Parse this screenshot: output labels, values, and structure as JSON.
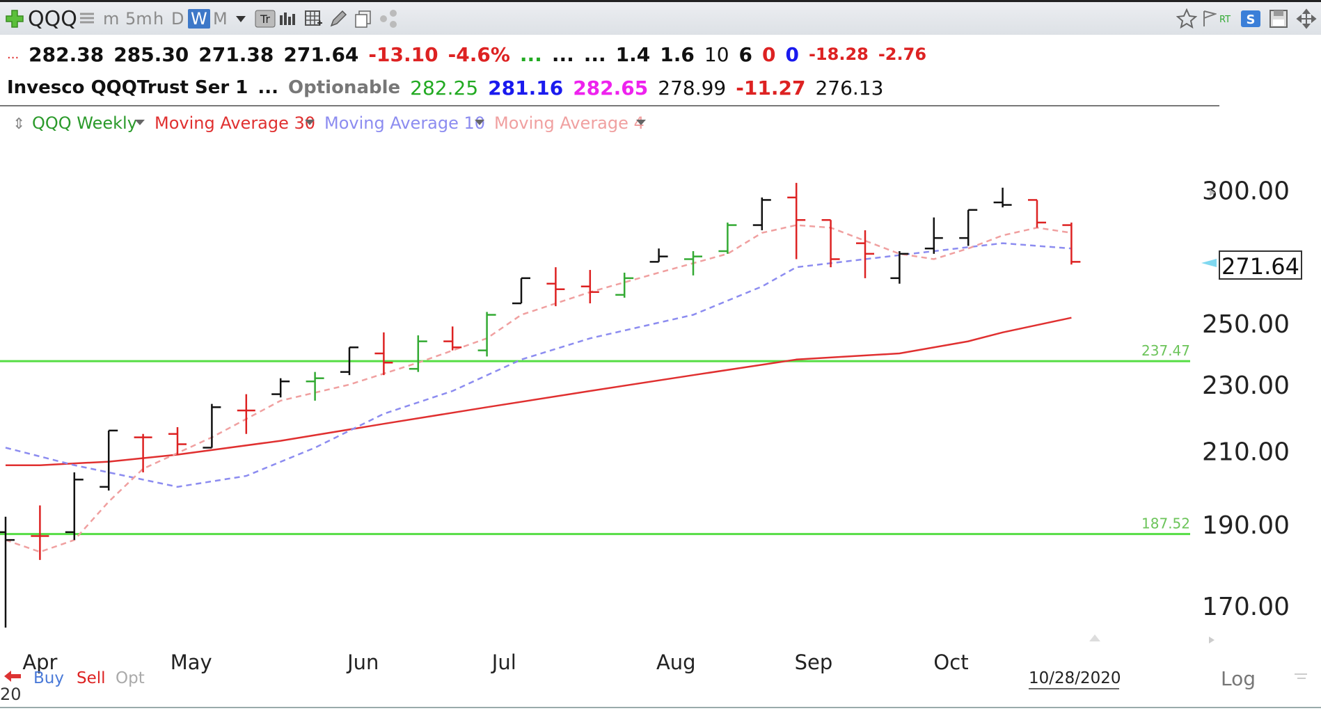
{
  "toolbar": {
    "symbol": "QQQ",
    "timeframes": [
      "m",
      "5m",
      "h",
      "D",
      "W",
      "M"
    ],
    "active_timeframe": "W",
    "icons": [
      "plus-icon",
      "list-icon",
      "dropdown-icon",
      "text-icon",
      "bars-icon",
      "grid-icon",
      "pencil-icon",
      "copy-icon",
      "share-icon",
      "star-icon",
      "flag-icon",
      "rt-icon",
      "s-icon",
      "save-icon",
      "move-icon"
    ]
  },
  "quote_row1": {
    "prefix": "...",
    "open": "282.38",
    "high": "285.30",
    "low": "271.38",
    "last": "271.64",
    "change": "-13.10",
    "change_pct": "-4.6%",
    "dots_green": "...",
    "dots1": "...",
    "dots2": "...",
    "v1": "1.4",
    "v2": "1.6",
    "v3": "10",
    "v4": "6",
    "v5": "0",
    "v6": "0",
    "v7": "-18.28",
    "v8": "-2.76"
  },
  "quote_row2": {
    "name": "Invesco QQQTrust Ser 1",
    "dots": "...",
    "optionable": "Optionable",
    "p1": "282.25",
    "p2": "281.16",
    "p3": "282.65",
    "p4": "278.99",
    "p5": "-11.27",
    "p6": "276.13"
  },
  "legend": {
    "series1": "QQQ Weekly",
    "series2": "Moving Average 30",
    "series3": "Moving Average 10",
    "series4": "Moving Average 4"
  },
  "colors": {
    "up": "#111111",
    "down": "#dd2222",
    "green_bar": "#33aa33",
    "ma30": "#e03030",
    "ma10": "#8c8cf0",
    "ma4": "#f0a0a0",
    "hline": "#55dd44",
    "quote_red": "#dd2222",
    "quote_green": "#22aa22",
    "quote_blue": "#1a1aee",
    "quote_magenta": "#ee22ee"
  },
  "bottom": {
    "buy": "Buy",
    "sell": "Sell",
    "opt": "Opt",
    "date": "10/28/2020",
    "log": "Log",
    "year_fragment": "20"
  },
  "chart_data": {
    "type": "ohlc",
    "title": "QQQ Weekly",
    "x_labels": [
      "Apr",
      "May",
      "Jun",
      "Jul",
      "Aug",
      "Sep",
      "Oct"
    ],
    "x_label_weeks": [
      1.0,
      5.4,
      10.4,
      14.5,
      19.5,
      23.5,
      27.5
    ],
    "y_ticks": [
      170,
      190,
      210,
      230,
      250,
      300
    ],
    "y_tick_labels": [
      "170.00",
      "190.00",
      "210.00",
      "230.00",
      "250.00",
      "300.00"
    ],
    "y_range": [
      163,
      318
    ],
    "log_scale": true,
    "last_price": 271.64,
    "last_price_label": "271.64",
    "horizontal_lines": [
      {
        "value": 237.47,
        "label": "237.47"
      },
      {
        "value": 187.52,
        "label": "187.52"
      }
    ],
    "bars": [
      {
        "week": 0,
        "open": 188,
        "high": 192,
        "low": 165,
        "close": 186,
        "color": "up"
      },
      {
        "week": 1,
        "open": 187,
        "high": 195,
        "low": 181,
        "close": 187,
        "color": "down"
      },
      {
        "week": 2,
        "open": 188,
        "high": 204,
        "low": 186,
        "close": 202,
        "color": "up"
      },
      {
        "week": 3,
        "open": 200,
        "high": 216,
        "low": 199,
        "close": 216,
        "color": "up"
      },
      {
        "week": 4,
        "open": 214,
        "high": 215,
        "low": 204,
        "close": 214,
        "color": "down"
      },
      {
        "week": 5,
        "open": 215,
        "high": 217,
        "low": 209,
        "close": 212,
        "color": "down"
      },
      {
        "week": 6,
        "open": 211,
        "high": 224,
        "low": 211,
        "close": 223,
        "color": "up"
      },
      {
        "week": 7,
        "open": 222,
        "high": 227,
        "low": 215,
        "close": 222,
        "color": "down"
      },
      {
        "week": 8,
        "open": 227,
        "high": 232,
        "low": 226,
        "close": 231,
        "color": "up"
      },
      {
        "week": 9,
        "open": 231,
        "high": 234,
        "low": 225,
        "close": 232,
        "color": "green"
      },
      {
        "week": 10,
        "open": 234,
        "high": 242,
        "low": 233,
        "close": 242,
        "color": "up"
      },
      {
        "week": 11,
        "open": 240,
        "high": 247,
        "low": 233,
        "close": 237,
        "color": "down"
      },
      {
        "week": 12,
        "open": 235,
        "high": 246,
        "low": 234,
        "close": 244,
        "color": "green"
      },
      {
        "week": 13,
        "open": 244,
        "high": 249,
        "low": 241,
        "close": 242,
        "color": "down"
      },
      {
        "week": 14,
        "open": 241,
        "high": 254,
        "low": 239,
        "close": 253,
        "color": "green"
      },
      {
        "week": 15,
        "open": 257,
        "high": 266,
        "low": 257,
        "close": 266,
        "color": "up"
      },
      {
        "week": 16,
        "open": 264,
        "high": 270,
        "low": 256,
        "close": 262,
        "color": "down"
      },
      {
        "week": 17,
        "open": 263,
        "high": 269,
        "low": 257,
        "close": 261,
        "color": "down"
      },
      {
        "week": 18,
        "open": 260,
        "high": 268,
        "low": 259,
        "close": 266,
        "color": "green"
      },
      {
        "week": 19,
        "open": 272,
        "high": 277,
        "low": 272,
        "close": 274,
        "color": "up"
      },
      {
        "week": 20,
        "open": 273,
        "high": 276,
        "low": 267,
        "close": 274,
        "color": "green"
      },
      {
        "week": 21,
        "open": 276,
        "high": 287,
        "low": 275,
        "close": 286,
        "color": "green"
      },
      {
        "week": 22,
        "open": 286,
        "high": 297,
        "low": 284,
        "close": 296,
        "color": "up"
      },
      {
        "week": 23,
        "open": 297,
        "high": 303,
        "low": 273,
        "close": 288,
        "color": "down"
      },
      {
        "week": 24,
        "open": 288,
        "high": 288,
        "low": 270,
        "close": 273,
        "color": "down"
      },
      {
        "week": 25,
        "open": 279,
        "high": 284,
        "low": 266,
        "close": 275,
        "color": "down"
      },
      {
        "week": 26,
        "open": 266,
        "high": 276,
        "low": 264,
        "close": 275,
        "color": "up"
      },
      {
        "week": 27,
        "open": 277,
        "high": 289,
        "low": 275,
        "close": 281,
        "color": "up"
      },
      {
        "week": 28,
        "open": 281,
        "high": 292,
        "low": 278,
        "close": 292,
        "color": "up"
      },
      {
        "week": 29,
        "open": 295,
        "high": 301,
        "low": 293,
        "close": 294,
        "color": "up"
      },
      {
        "week": 30,
        "open": 296,
        "high": 296,
        "low": 285,
        "close": 287,
        "color": "down"
      },
      {
        "week": 31,
        "open": 286,
        "high": 287,
        "low": 271,
        "close": 272,
        "color": "down"
      }
    ],
    "series": [
      {
        "name": "Moving Average 30",
        "style": "solid",
        "values": [
          [
            0,
            206
          ],
          [
            1,
            206
          ],
          [
            3,
            207
          ],
          [
            5,
            209
          ],
          [
            8,
            213
          ],
          [
            11,
            218
          ],
          [
            14,
            223
          ],
          [
            17,
            228
          ],
          [
            20,
            233
          ],
          [
            23,
            238
          ],
          [
            26,
            240
          ],
          [
            28,
            244
          ],
          [
            29,
            247
          ],
          [
            31,
            252
          ]
        ]
      },
      {
        "name": "Moving Average 10",
        "style": "dashed",
        "values": [
          [
            0,
            211
          ],
          [
            2,
            206
          ],
          [
            5,
            200
          ],
          [
            7,
            203
          ],
          [
            9,
            211
          ],
          [
            11,
            221
          ],
          [
            13,
            228
          ],
          [
            15,
            238
          ],
          [
            17,
            245
          ],
          [
            20,
            253
          ],
          [
            22,
            263
          ],
          [
            23,
            270
          ],
          [
            25,
            273
          ],
          [
            27,
            276
          ],
          [
            29,
            279
          ],
          [
            31,
            277
          ]
        ]
      },
      {
        "name": "Moving Average 4",
        "style": "dashed",
        "values": [
          [
            0,
            186
          ],
          [
            1,
            183
          ],
          [
            2,
            186
          ],
          [
            3,
            196
          ],
          [
            4,
            205
          ],
          [
            6,
            214
          ],
          [
            8,
            225
          ],
          [
            10,
            230
          ],
          [
            12,
            237
          ],
          [
            14,
            245
          ],
          [
            15,
            253
          ],
          [
            17,
            261
          ],
          [
            19,
            268
          ],
          [
            21,
            275
          ],
          [
            22,
            283
          ],
          [
            23,
            286
          ],
          [
            24,
            285
          ],
          [
            26,
            275
          ],
          [
            27,
            273
          ],
          [
            28,
            277
          ],
          [
            29,
            282
          ],
          [
            30,
            285
          ],
          [
            31,
            283
          ]
        ]
      }
    ]
  }
}
